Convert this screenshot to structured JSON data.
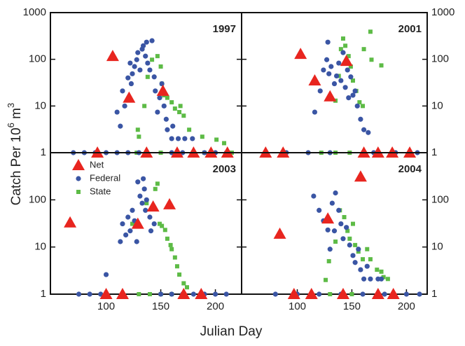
{
  "figure": {
    "xlabel": "Julian Day",
    "ylabel": [
      "Catch Per 10",
      "6",
      " m",
      "3"
    ]
  },
  "chart_data": [
    {
      "type": "scatter",
      "label": "1997",
      "xlim": [
        49,
        224
      ],
      "ylim": [
        1,
        1000
      ],
      "ylog": true,
      "yticks": [
        1,
        10,
        100,
        1000
      ],
      "series": [
        {
          "name": "Net",
          "color": "#e8251f",
          "marker": "triangle",
          "x": [
            106,
            121,
            152,
            92,
            137,
            165,
            180,
            196,
            211
          ],
          "y": [
            117,
            15,
            21,
            1,
            1,
            1,
            1,
            1,
            1
          ]
        },
        {
          "name": "Federal",
          "color": "#3a55a4",
          "marker": "circle",
          "x": [
            110,
            113,
            115,
            117,
            120,
            122,
            123,
            124,
            126,
            128,
            129,
            131,
            133,
            134,
            136,
            137,
            138,
            142,
            140,
            144,
            145,
            147,
            149,
            151,
            153,
            155,
            156,
            160,
            166,
            172,
            179,
            161,
            70,
            80,
            90,
            100,
            110,
            120,
            130,
            160,
            170,
            180,
            190,
            200,
            210
          ],
          "y": [
            7.4,
            3.7,
            21,
            10,
            40,
            83,
            30,
            49,
            70,
            98,
            139,
            59,
            165,
            195,
            117,
            233,
            83,
            250,
            59,
            42,
            21,
            7.4,
            15,
            30,
            10,
            5.2,
            3.1,
            2,
            2,
            2,
            2,
            3.7,
            1,
            1,
            1,
            1,
            1,
            1,
            1,
            1,
            1,
            1,
            1,
            1,
            1
          ]
        },
        {
          "name": "State",
          "color": "#5dbb46",
          "marker": "square",
          "x": [
            129,
            130,
            135,
            138,
            142,
            147,
            150,
            151,
            153,
            156,
            160,
            163,
            167,
            171,
            168,
            176,
            188,
            201,
            208,
            128,
            150,
            190,
            215
          ],
          "y": [
            3.1,
            2.2,
            10,
            42,
            98,
            117,
            70,
            30,
            17,
            15,
            12,
            8.8,
            7.4,
            6.2,
            10,
            3.1,
            2.2,
            1.9,
            1.6,
            1,
            1,
            1,
            1
          ]
        }
      ]
    },
    {
      "type": "scatter",
      "label": "2001",
      "xlim": [
        49,
        219
      ],
      "ylim": [
        1,
        1000
      ],
      "ylog": true,
      "yticks": [
        1,
        10,
        100,
        1000
      ],
      "series": [
        {
          "name": "Net",
          "color": "#e8251f",
          "marker": "triangle",
          "x": [
            103,
            116,
            130,
            145,
            71,
            87,
            161,
            174,
            187,
            203
          ],
          "y": [
            130,
            35,
            16,
            92,
            1,
            1,
            1,
            1,
            1,
            1
          ]
        },
        {
          "name": "Federal",
          "color": "#3a55a4",
          "marker": "circle",
          "x": [
            116,
            121,
            124,
            127,
            128,
            129,
            131,
            134,
            136,
            138,
            140,
            142,
            144,
            146,
            147,
            149,
            151,
            153,
            155,
            158,
            161,
            165,
            90,
            110,
            130,
            170,
            190,
            210
          ],
          "y": [
            7.4,
            21,
            59,
            98,
            233,
            49,
            70,
            30,
            44,
            83,
            35,
            139,
            25,
            59,
            15,
            42,
            17,
            21,
            10,
            5.2,
            3.1,
            2.7,
            1,
            1,
            1,
            1,
            1,
            1
          ]
        },
        {
          "name": "State",
          "color": "#5dbb46",
          "marker": "square",
          "x": [
            135,
            138,
            140,
            142,
            144,
            147,
            149,
            151,
            154,
            157,
            160,
            167,
            168,
            177,
            161,
            122,
            135,
            148
          ],
          "y": [
            13,
            44,
            165,
            278,
            195,
            117,
            70,
            35,
            21,
            12,
            10,
            390,
            98,
            74,
            165,
            1,
            1,
            1
          ]
        }
      ]
    },
    {
      "type": "scatter",
      "label": "2003",
      "xlim": [
        49,
        224
      ],
      "ylim": [
        1,
        1000
      ],
      "ylog": true,
      "yticks": [
        1,
        10,
        100
      ],
      "xticks": [
        100,
        150,
        200
      ],
      "legend": "upper left",
      "series": [
        {
          "name": "Net",
          "color": "#e8251f",
          "marker": "triangle",
          "x": [
            67,
            129,
            143,
            158,
            100,
            115,
            171,
            187
          ],
          "y": [
            33,
            31,
            72,
            80,
            1,
            1,
            1,
            1
          ]
        },
        {
          "name": "Federal",
          "color": "#3a55a4",
          "marker": "circle",
          "x": [
            100,
            113,
            115,
            118,
            120,
            122,
            124,
            126,
            128,
            129,
            131,
            133,
            135,
            136,
            137,
            134,
            140,
            141,
            144,
            75,
            85,
            95,
            150,
            160,
            170,
            180,
            190,
            200,
            210
          ],
          "y": [
            2.6,
            13,
            31,
            18,
            43,
            22,
            60,
            36,
            13,
            240,
            120,
            85,
            170,
            60,
            100,
            280,
            43,
            22,
            31,
            1,
            1,
            1,
            1,
            1,
            1,
            1,
            1,
            1,
            1
          ]
        },
        {
          "name": "State",
          "color": "#5dbb46",
          "marker": "square",
          "x": [
            124,
            137,
            145,
            147,
            149,
            151,
            154,
            156,
            159,
            160,
            163,
            165,
            167,
            171,
            174,
            130,
            140,
            150,
            160
          ],
          "y": [
            31,
            85,
            170,
            220,
            31,
            28,
            23,
            15,
            11,
            9,
            6,
            3.9,
            2.6,
            1.7,
            1.4,
            1,
            1,
            1,
            1
          ]
        }
      ]
    },
    {
      "type": "scatter",
      "label": "2004",
      "xlim": [
        49,
        219
      ],
      "ylim": [
        1,
        1000
      ],
      "ylog": true,
      "yticks": [
        1,
        10,
        100
      ],
      "xticks": [
        100,
        150,
        200
      ],
      "series": [
        {
          "name": "Net",
          "color": "#e8251f",
          "marker": "triangle",
          "x": [
            84,
            128,
            158,
            97,
            113,
            142,
            174,
            188
          ],
          "y": [
            19,
            40,
            310,
            1,
            1,
            1,
            1,
            1
          ]
        },
        {
          "name": "Federal",
          "color": "#3a55a4",
          "marker": "circle",
          "x": [
            128,
            132,
            135,
            138,
            130,
            134,
            140,
            142,
            145,
            148,
            151,
            153,
            156,
            158,
            161,
            164,
            167,
            174,
            177,
            115,
            120,
            124,
            80,
            100,
            120,
            140,
            160,
            180,
            200,
            212
          ],
          "y": [
            23,
            85,
            140,
            60,
            9,
            22,
            31,
            15,
            26,
            11,
            6.6,
            4.7,
            9,
            3.3,
            2.1,
            3.9,
            2.1,
            2.1,
            2.1,
            120,
            60,
            36,
            1,
            1,
            1,
            1,
            1,
            1,
            1,
            1
          ]
        },
        {
          "name": "State",
          "color": "#5dbb46",
          "marker": "square",
          "x": [
            126,
            129,
            135,
            139,
            143,
            146,
            148,
            151,
            153,
            156,
            160,
            164,
            167,
            173,
            177,
            179,
            183,
            130,
            150
          ],
          "y": [
            2,
            5,
            13,
            60,
            43,
            22,
            15,
            31,
            11,
            8,
            5.5,
            9,
            5.5,
            3.3,
            3,
            2.3,
            2.1,
            1,
            1
          ]
        }
      ]
    }
  ]
}
